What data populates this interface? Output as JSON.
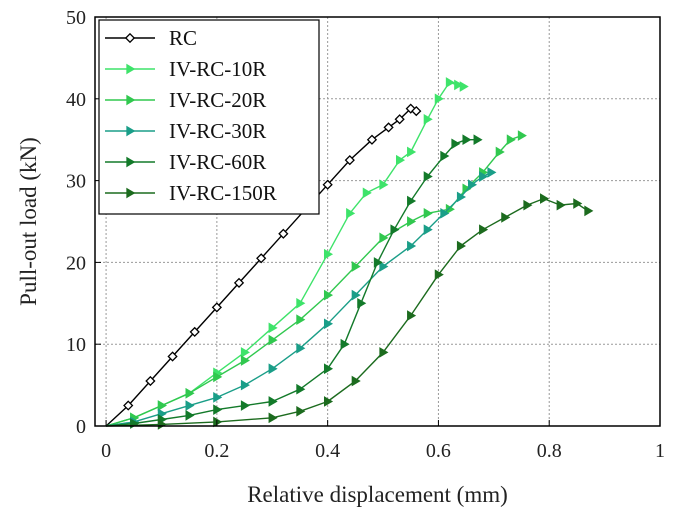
{
  "chart_data": {
    "type": "line",
    "xlabel": "Relative displacement (mm)",
    "ylabel": "Pull-out load (kN)",
    "xlim": [
      -0.02,
      1.0
    ],
    "ylim": [
      0,
      50
    ],
    "xticks": [
      0,
      0.2,
      0.4,
      0.6,
      0.8,
      1
    ],
    "xtick_labels": [
      "0",
      "0.2",
      "0.4",
      "0.6",
      "0.8",
      "1"
    ],
    "yticks": [
      0,
      10,
      20,
      30,
      40,
      50
    ],
    "ytick_labels": [
      "0",
      "10",
      "20",
      "30",
      "40",
      "50"
    ],
    "grid": true,
    "legend": "top-left",
    "series": [
      {
        "name": "RC",
        "color": "#000000",
        "marker": "diamond-open",
        "x": [
          0.0,
          0.04,
          0.08,
          0.12,
          0.16,
          0.2,
          0.24,
          0.28,
          0.32,
          0.36,
          0.4,
          0.44,
          0.48,
          0.51,
          0.53,
          0.55,
          0.56
        ],
        "y": [
          0,
          2.5,
          5.5,
          8.5,
          11.5,
          14.5,
          17.5,
          20.5,
          23.5,
          26.5,
          29.5,
          32.5,
          35,
          36.5,
          37.5,
          38.8,
          38.5
        ]
      },
      {
        "name": "IV-RC-10R",
        "color": "#3ee36a",
        "marker": "triangle-right",
        "x": [
          0.0,
          0.05,
          0.1,
          0.15,
          0.2,
          0.25,
          0.3,
          0.35,
          0.4,
          0.44,
          0.47,
          0.5,
          0.53,
          0.55,
          0.58,
          0.6,
          0.62,
          0.635,
          0.645
        ],
        "y": [
          0,
          1.0,
          2.5,
          4.0,
          6.5,
          9.0,
          12.0,
          15.0,
          21.0,
          26.0,
          28.5,
          29.5,
          32.5,
          33.5,
          37.5,
          40.0,
          42.0,
          41.7,
          41.5
        ]
      },
      {
        "name": "IV-RC-20R",
        "color": "#31c84f",
        "marker": "triangle-right",
        "x": [
          0.0,
          0.05,
          0.1,
          0.15,
          0.2,
          0.25,
          0.3,
          0.35,
          0.4,
          0.45,
          0.5,
          0.55,
          0.58,
          0.62,
          0.65,
          0.68,
          0.71,
          0.73,
          0.75
        ],
        "y": [
          0,
          1.0,
          2.5,
          4.0,
          6.0,
          8.0,
          10.5,
          13.0,
          16.0,
          19.5,
          23.0,
          25.0,
          26.0,
          26.5,
          29.0,
          31.0,
          33.5,
          35.0,
          35.5
        ]
      },
      {
        "name": "IV-RC-30R",
        "color": "#1a9e88",
        "marker": "triangle-right",
        "x": [
          0.0,
          0.05,
          0.1,
          0.15,
          0.2,
          0.25,
          0.3,
          0.35,
          0.4,
          0.45,
          0.5,
          0.55,
          0.58,
          0.61,
          0.64,
          0.66,
          0.68,
          0.695
        ],
        "y": [
          0,
          0.5,
          1.5,
          2.5,
          3.5,
          5.0,
          7.0,
          9.5,
          12.5,
          16.0,
          19.5,
          22.0,
          24.0,
          26.0,
          28.0,
          29.5,
          30.5,
          31.0
        ]
      },
      {
        "name": "IV-RC-60R",
        "color": "#137a2a",
        "marker": "triangle-right",
        "x": [
          0.0,
          0.05,
          0.1,
          0.15,
          0.2,
          0.25,
          0.3,
          0.35,
          0.4,
          0.43,
          0.46,
          0.49,
          0.52,
          0.55,
          0.58,
          0.61,
          0.63,
          0.65,
          0.67
        ],
        "y": [
          0,
          0.3,
          0.8,
          1.3,
          2.0,
          2.5,
          3.0,
          4.5,
          7.0,
          10.0,
          15.0,
          20.0,
          24.0,
          27.5,
          30.5,
          33.0,
          34.5,
          35.0,
          35.0
        ]
      },
      {
        "name": "IV-RC-150R",
        "color": "#1c6b1e",
        "marker": "triangle-right",
        "x": [
          0.0,
          0.1,
          0.2,
          0.3,
          0.35,
          0.4,
          0.45,
          0.5,
          0.55,
          0.6,
          0.64,
          0.68,
          0.72,
          0.76,
          0.79,
          0.82,
          0.85,
          0.87
        ],
        "y": [
          0,
          0.2,
          0.5,
          1.0,
          1.8,
          3.0,
          5.5,
          9.0,
          13.5,
          18.5,
          22.0,
          24.0,
          25.5,
          27.0,
          27.8,
          27.0,
          27.2,
          26.3
        ]
      }
    ]
  }
}
